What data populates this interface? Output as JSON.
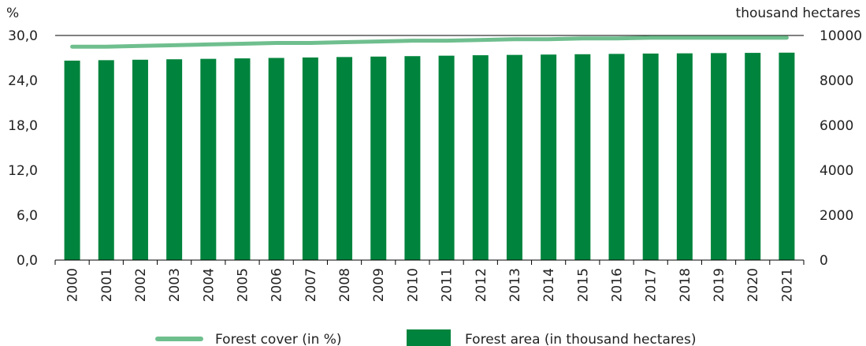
{
  "chart_data": {
    "type": "bar",
    "title": "",
    "categories": [
      "2000",
      "2001",
      "2002",
      "2003",
      "2004",
      "2005",
      "2006",
      "2007",
      "2008",
      "2009",
      "2010",
      "2011",
      "2012",
      "2013",
      "2014",
      "2015",
      "2016",
      "2017",
      "2018",
      "2019",
      "2020",
      "2021"
    ],
    "left_axis": {
      "unit": "%",
      "ylim": [
        0,
        30
      ],
      "ticks": [
        "0,0",
        "6,0",
        "12,0",
        "18,0",
        "24,0",
        "30,0"
      ]
    },
    "right_axis": {
      "unit": "thousand hectares",
      "ylim": [
        0,
        10000
      ],
      "ticks": [
        "0",
        "2000",
        "4000",
        "6000",
        "8000",
        "10000"
      ]
    },
    "series": [
      {
        "name": "Forest area (in thousand hectares)",
        "type": "bar",
        "axis": "right",
        "color": "#00843D",
        "values": [
          8880,
          8900,
          8920,
          8940,
          8960,
          8980,
          9000,
          9020,
          9040,
          9060,
          9080,
          9100,
          9120,
          9135,
          9150,
          9165,
          9180,
          9195,
          9205,
          9215,
          9225,
          9235
        ]
      },
      {
        "name": "Forest cover (in %)",
        "type": "line",
        "axis": "left",
        "color": "#6FBF8E",
        "values": [
          28.5,
          28.5,
          28.6,
          28.7,
          28.8,
          28.9,
          29.0,
          29.0,
          29.1,
          29.2,
          29.3,
          29.3,
          29.4,
          29.5,
          29.5,
          29.6,
          29.6,
          29.7,
          29.7,
          29.7,
          29.7,
          29.7
        ]
      }
    ],
    "grid": {
      "top_line": true
    },
    "legend": {
      "position": "bottom",
      "items": [
        {
          "label": "Forest cover (in %)",
          "kind": "line",
          "color": "#6FBF8E"
        },
        {
          "label": "Forest area (in thousand hectares)",
          "kind": "box",
          "color": "#00843D"
        }
      ]
    }
  }
}
